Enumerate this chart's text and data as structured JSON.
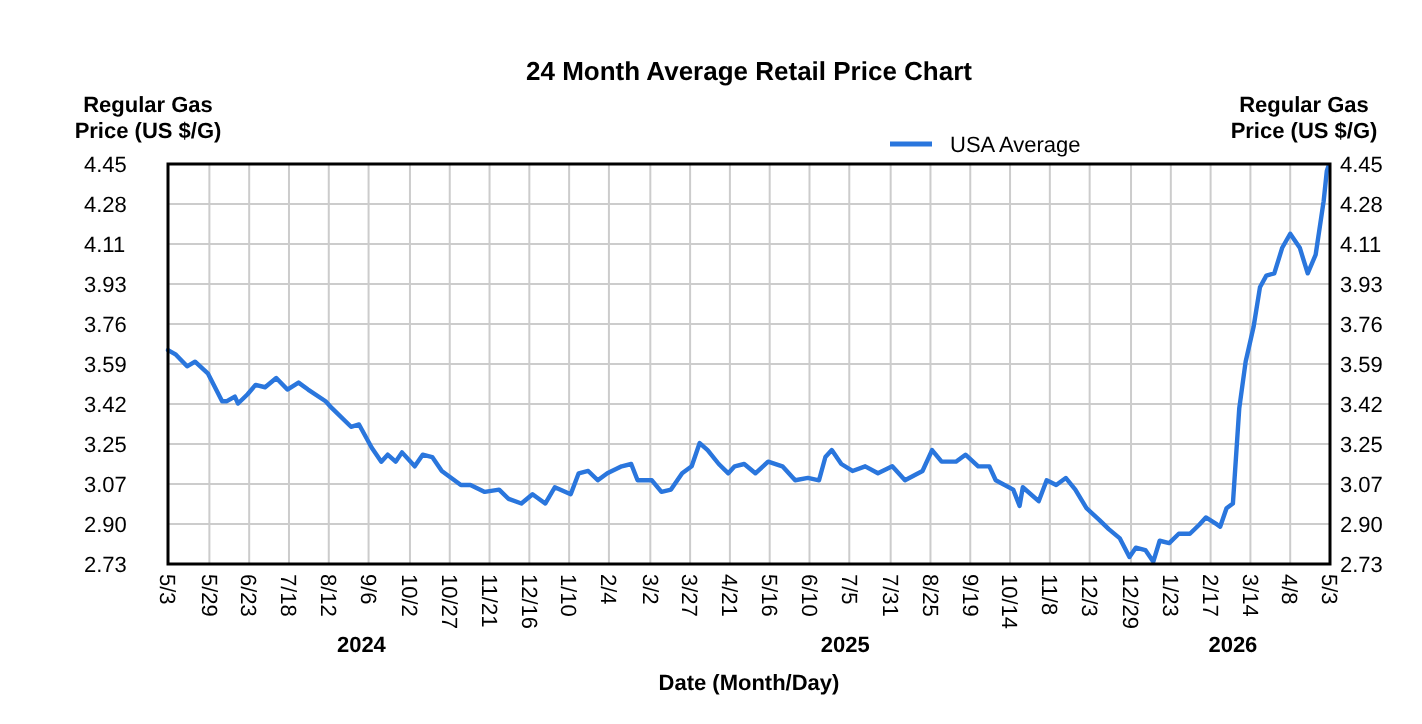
{
  "chart_data": {
    "type": "line",
    "title": "24 Month Average Retail Price Chart",
    "xlabel": "Date (Month/Day)",
    "ylabel": "Regular Gas Price (US $/G)",
    "y2label": "Regular Gas Price (US $/G)",
    "x": [
      "2024-05-03",
      "2024-05-08",
      "2024-05-15",
      "2024-05-20",
      "2024-05-28",
      "2024-06-06",
      "2024-06-09",
      "2024-06-14",
      "2024-06-16",
      "2024-06-22",
      "2024-06-27",
      "2024-07-03",
      "2024-07-10",
      "2024-07-17",
      "2024-07-24",
      "2024-07-30",
      "2024-08-10",
      "2024-08-14",
      "2024-08-26",
      "2024-08-31",
      "2024-09-08",
      "2024-09-14",
      "2024-09-18",
      "2024-09-23",
      "2024-09-27",
      "2024-10-05",
      "2024-10-10",
      "2024-10-16",
      "2024-10-22",
      "2024-10-28",
      "2024-11-03",
      "2024-11-09",
      "2024-11-18",
      "2024-11-27",
      "2024-12-03",
      "2024-12-11",
      "2024-12-18",
      "2024-12-26",
      "2025-01-01",
      "2025-01-11",
      "2025-01-16",
      "2025-01-22",
      "2025-01-28",
      "2025-02-03",
      "2025-02-12",
      "2025-02-18",
      "2025-02-22",
      "2025-03-03",
      "2025-03-09",
      "2025-03-15",
      "2025-03-22",
      "2025-03-28",
      "2025-04-02",
      "2025-04-07",
      "2025-04-14",
      "2025-04-20",
      "2025-04-24",
      "2025-04-30",
      "2025-05-07",
      "2025-05-15",
      "2025-05-24",
      "2025-06-01",
      "2025-06-09",
      "2025-06-16",
      "2025-06-20",
      "2025-06-24",
      "2025-06-30",
      "2025-07-07",
      "2025-07-15",
      "2025-07-23",
      "2025-08-01",
      "2025-08-09",
      "2025-08-20",
      "2025-08-26",
      "2025-09-01",
      "2025-09-10",
      "2025-09-16",
      "2025-09-24",
      "2025-10-01",
      "2025-10-05",
      "2025-10-16",
      "2025-10-20",
      "2025-10-22",
      "2025-11-01",
      "2025-11-06",
      "2025-11-12",
      "2025-11-18",
      "2025-11-24",
      "2025-12-01",
      "2025-12-09",
      "2025-12-15",
      "2025-12-22",
      "2025-12-28",
      "2026-01-01",
      "2026-01-07",
      "2026-01-12",
      "2026-01-16",
      "2026-01-22",
      "2026-01-28",
      "2026-02-04",
      "2026-02-10",
      "2026-02-14",
      "2026-02-21",
      "2026-02-23",
      "2026-02-27",
      "2026-03-03",
      "2026-03-07",
      "2026-03-11",
      "2026-03-16",
      "2026-03-20",
      "2026-03-24",
      "2026-03-29",
      "2026-04-03",
      "2026-04-08",
      "2026-04-14",
      "2026-04-19",
      "2026-04-24",
      "2026-04-29",
      "2026-05-01",
      "2026-05-02"
    ],
    "series": [
      {
        "name": "USA Average",
        "color": "#2a76dd",
        "values": [
          3.65,
          3.63,
          3.58,
          3.6,
          3.55,
          3.43,
          3.43,
          3.45,
          3.42,
          3.46,
          3.5,
          3.49,
          3.53,
          3.48,
          3.51,
          3.48,
          3.43,
          3.4,
          3.32,
          3.33,
          3.23,
          3.17,
          3.2,
          3.17,
          3.21,
          3.15,
          3.2,
          3.19,
          3.13,
          3.1,
          3.07,
          3.07,
          3.04,
          3.05,
          3.01,
          2.99,
          3.03,
          2.99,
          3.06,
          3.03,
          3.12,
          3.13,
          3.09,
          3.12,
          3.15,
          3.16,
          3.09,
          3.09,
          3.04,
          3.05,
          3.12,
          3.15,
          3.25,
          3.22,
          3.16,
          3.12,
          3.15,
          3.16,
          3.12,
          3.17,
          3.15,
          3.09,
          3.1,
          3.09,
          3.19,
          3.22,
          3.16,
          3.13,
          3.15,
          3.12,
          3.15,
          3.09,
          3.13,
          3.22,
          3.17,
          3.17,
          3.2,
          3.15,
          3.15,
          3.09,
          3.05,
          2.98,
          3.06,
          3.0,
          3.09,
          3.07,
          3.1,
          3.05,
          2.97,
          2.92,
          2.88,
          2.84,
          2.76,
          2.8,
          2.79,
          2.74,
          2.83,
          2.82,
          2.86,
          2.86,
          2.9,
          2.93,
          2.9,
          2.89,
          2.97,
          2.99,
          3.4,
          3.6,
          3.75,
          3.92,
          3.97,
          3.98,
          4.09,
          4.15,
          4.09,
          3.98,
          4.06,
          4.29,
          4.42,
          4.44
        ]
      }
    ],
    "xlim": [
      "2024-05-03",
      "2026-05-03"
    ],
    "xticks": [
      {
        "value": "2024-05-03",
        "label": "5/3"
      },
      {
        "value": "2024-05-29",
        "label": "5/29"
      },
      {
        "value": "2024-06-23",
        "label": "6/23"
      },
      {
        "value": "2024-07-18",
        "label": "7/18"
      },
      {
        "value": "2024-08-12",
        "label": "8/12"
      },
      {
        "value": "2024-09-06",
        "label": "9/6"
      },
      {
        "value": "2024-10-02",
        "label": "10/2"
      },
      {
        "value": "2024-10-27",
        "label": "10/27"
      },
      {
        "value": "2024-11-21",
        "label": "11/21"
      },
      {
        "value": "2024-12-16",
        "label": "12/16"
      },
      {
        "value": "2025-01-10",
        "label": "1/10"
      },
      {
        "value": "2025-02-04",
        "label": "2/4"
      },
      {
        "value": "2025-03-02",
        "label": "3/2"
      },
      {
        "value": "2025-03-27",
        "label": "3/27"
      },
      {
        "value": "2025-04-21",
        "label": "4/21"
      },
      {
        "value": "2025-05-16",
        "label": "5/16"
      },
      {
        "value": "2025-06-10",
        "label": "6/10"
      },
      {
        "value": "2025-07-05",
        "label": "7/5"
      },
      {
        "value": "2025-07-31",
        "label": "7/31"
      },
      {
        "value": "2025-08-25",
        "label": "8/25"
      },
      {
        "value": "2025-09-19",
        "label": "9/19"
      },
      {
        "value": "2025-10-14",
        "label": "10/14"
      },
      {
        "value": "2025-11-08",
        "label": "11/8"
      },
      {
        "value": "2025-12-03",
        "label": "12/3"
      },
      {
        "value": "2025-12-29",
        "label": "12/29"
      },
      {
        "value": "2026-01-23",
        "label": "1/23"
      },
      {
        "value": "2026-02-17",
        "label": "2/17"
      },
      {
        "value": "2026-03-14",
        "label": "3/14"
      },
      {
        "value": "2026-04-08",
        "label": "4/8"
      },
      {
        "value": "2026-05-03",
        "label": "5/3"
      }
    ],
    "ylim": [
      2.73,
      4.45
    ],
    "yticks": [
      2.73,
      {
        "value": 2.902,
        "label": "2.90"
      },
      {
        "value": 3.074,
        "label": "3.07"
      },
      {
        "value": 3.246,
        "label": "3.25"
      },
      {
        "value": 3.418,
        "label": "3.42"
      },
      3.59,
      {
        "value": 3.762,
        "label": "3.76"
      },
      {
        "value": 3.934,
        "label": "3.93"
      },
      {
        "value": 4.106,
        "label": "4.11"
      },
      {
        "value": 4.278,
        "label": "4.28"
      },
      4.45
    ],
    "y2lim": [
      2.73,
      4.45
    ],
    "y2ticks": [
      2.73,
      {
        "value": 2.902,
        "label": "2.90"
      },
      {
        "value": 3.074,
        "label": "3.07"
      },
      {
        "value": 3.246,
        "label": "3.25"
      },
      {
        "value": 3.418,
        "label": "3.42"
      },
      3.59,
      {
        "value": 3.762,
        "label": "3.76"
      },
      {
        "value": 3.934,
        "label": "3.93"
      },
      {
        "value": 4.106,
        "label": "4.11"
      },
      {
        "value": 4.278,
        "label": "4.28"
      },
      4.45
    ],
    "annotations": [
      "2024",
      "2025",
      "2026"
    ],
    "grid": true,
    "legend": "top right",
    "line_style": "solid",
    "marker": "none"
  }
}
